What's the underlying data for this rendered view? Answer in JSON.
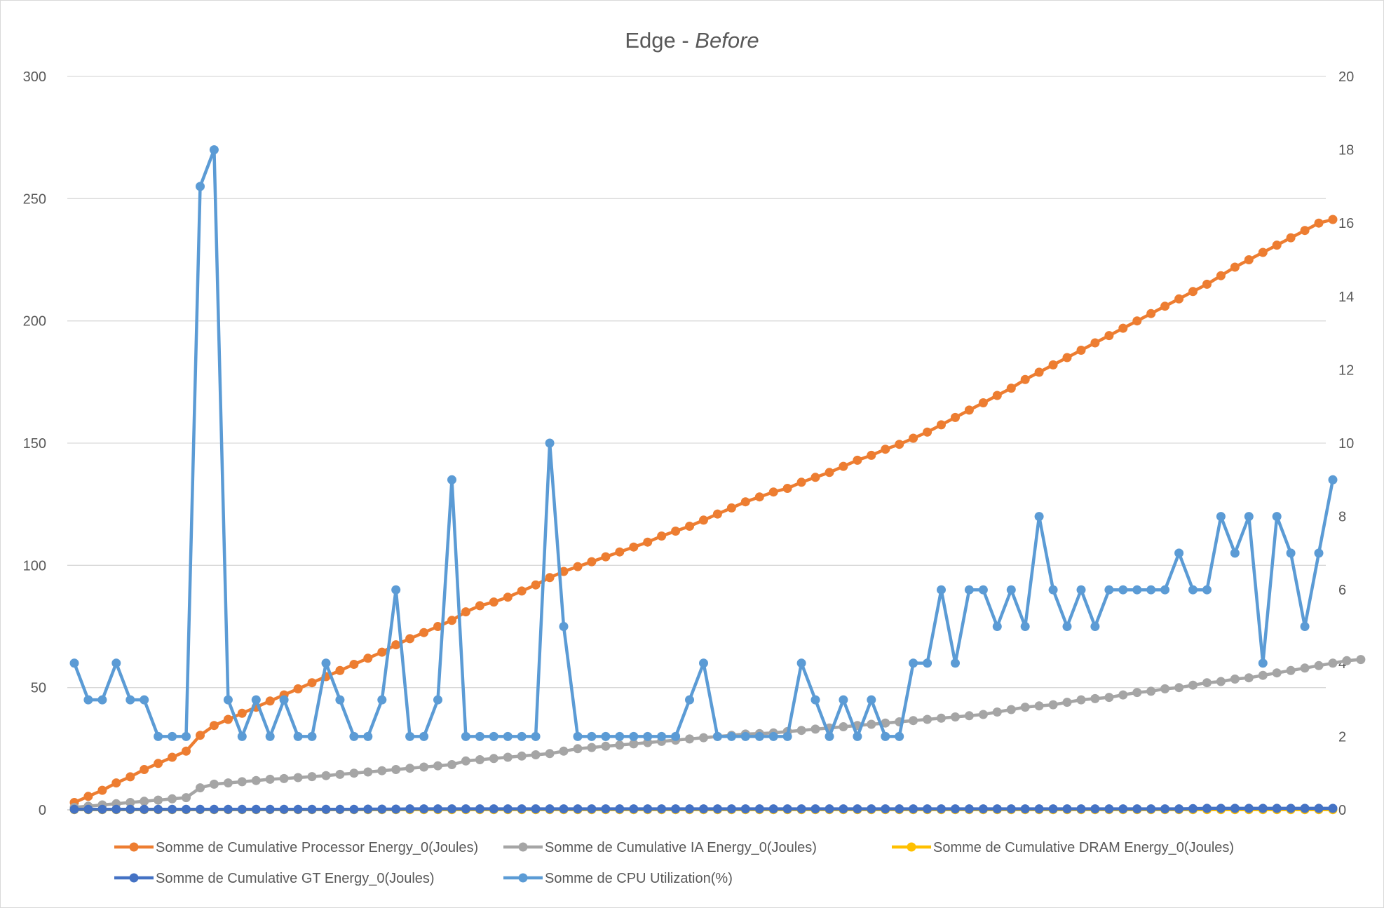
{
  "chart_data": {
    "type": "line",
    "title": "Edge - ",
    "title_italic": "Before",
    "x_count": 90,
    "y_left": {
      "min": 0,
      "max": 300,
      "ticks": [
        0,
        50,
        100,
        150,
        200,
        250,
        300
      ]
    },
    "y_right": {
      "min": 0,
      "max": 20,
      "ticks": [
        0,
        2,
        4,
        6,
        8,
        10,
        12,
        14,
        16,
        18,
        20
      ]
    },
    "grid": true,
    "legend_position": "bottom",
    "series": [
      {
        "name": "Somme de Cumulative Processor Energy_0(Joules)",
        "color": "#ED7D31",
        "axis": "left",
        "values": [
          3,
          5.5,
          8,
          11,
          13.5,
          16.5,
          19,
          21.5,
          24,
          30.5,
          34.5,
          37,
          39.5,
          42,
          44.5,
          47,
          49.5,
          52,
          54.5,
          57,
          59.5,
          62,
          64.5,
          67.5,
          70,
          72.5,
          75,
          77.5,
          81,
          83.5,
          85,
          87,
          89.5,
          92,
          95,
          97.5,
          99.5,
          101.5,
          103.5,
          105.5,
          107.5,
          109.5,
          112,
          114,
          116,
          118.5,
          121,
          123.5,
          126,
          128,
          130,
          131.5,
          134,
          136,
          138,
          140.5,
          143,
          145,
          147.5,
          149.5,
          152,
          154.5,
          157.5,
          160.5,
          163.5,
          166.5,
          169.5,
          172.5,
          176,
          179,
          182,
          185,
          188,
          191,
          194,
          197,
          200,
          203,
          206,
          209,
          212,
          215,
          218.5,
          222,
          225,
          228,
          231,
          234,
          237,
          240,
          241.5
        ]
      },
      {
        "name": "Somme de Cumulative IA Energy_0(Joules)",
        "color": "#A5A5A5",
        "axis": "left",
        "values": [
          1,
          1.5,
          2,
          2.5,
          3,
          3.5,
          4,
          4.5,
          5,
          9,
          10.5,
          11,
          11.5,
          12,
          12.5,
          12.8,
          13.2,
          13.6,
          14,
          14.5,
          15,
          15.5,
          16,
          16.5,
          17,
          17.5,
          18,
          18.5,
          20,
          20.5,
          21,
          21.5,
          22,
          22.5,
          23,
          24,
          25,
          25.5,
          26,
          26.5,
          27,
          27.5,
          28,
          28.5,
          29,
          29.5,
          30,
          30.5,
          31,
          31.2,
          31.5,
          32,
          32.5,
          33,
          33.5,
          34,
          34.5,
          35,
          35.5,
          36,
          36.5,
          37,
          37.5,
          38,
          38.5,
          39,
          40,
          41,
          42,
          42.5,
          43,
          44,
          45,
          45.5,
          46,
          47,
          48,
          48.5,
          49.5,
          50,
          51,
          52,
          52.5,
          53.5,
          54,
          55,
          56,
          57,
          58,
          59,
          60,
          61,
          61.5
        ]
      },
      {
        "name": "Somme de Cumulative DRAM Energy_0(Joules)",
        "color": "#FFC000",
        "axis": "left",
        "values": [
          0.1,
          0.1,
          0.1,
          0.1,
          0.1,
          0.1,
          0.1,
          0.1,
          0.1,
          0.1,
          0.1,
          0.1,
          0.1,
          0.1,
          0.1,
          0.1,
          0.1,
          0.1,
          0.1,
          0.1,
          0.1,
          0.1,
          0.1,
          0.1,
          0.1,
          0.1,
          0.1,
          0.1,
          0.1,
          0.1,
          0.1,
          0.1,
          0.1,
          0.1,
          0.1,
          0.1,
          0.1,
          0.1,
          0.1,
          0.1,
          0.1,
          0.1,
          0.1,
          0.1,
          0.1,
          0.1,
          0.1,
          0.1,
          0.1,
          0.1,
          0.1,
          0.1,
          0.1,
          0.1,
          0.1,
          0.1,
          0.1,
          0.1,
          0.1,
          0.1,
          0.1,
          0.1,
          0.1,
          0.1,
          0.1,
          0.1,
          0.1,
          0.1,
          0.1,
          0.1,
          0.1,
          0.1,
          0.1,
          0.1,
          0.1,
          0.1,
          0.1,
          0.1,
          0.1,
          0.1,
          0.1,
          0.1,
          0.1,
          0.1,
          0.1,
          0.1,
          0.1,
          0.1,
          0.1,
          0.1,
          0.1
        ]
      },
      {
        "name": "Somme de Cumulative GT Energy_0(Joules)",
        "color": "#4472C4",
        "axis": "left",
        "values": [
          0.2,
          0.2,
          0.2,
          0.2,
          0.2,
          0.2,
          0.2,
          0.2,
          0.2,
          0.2,
          0.2,
          0.2,
          0.2,
          0.2,
          0.2,
          0.2,
          0.2,
          0.2,
          0.2,
          0.2,
          0.2,
          0.3,
          0.3,
          0.3,
          0.4,
          0.4,
          0.4,
          0.4,
          0.4,
          0.4,
          0.4,
          0.4,
          0.4,
          0.4,
          0.4,
          0.4,
          0.4,
          0.4,
          0.4,
          0.4,
          0.4,
          0.4,
          0.4,
          0.4,
          0.4,
          0.4,
          0.4,
          0.4,
          0.4,
          0.4,
          0.4,
          0.4,
          0.4,
          0.4,
          0.4,
          0.4,
          0.4,
          0.4,
          0.4,
          0.4,
          0.4,
          0.4,
          0.4,
          0.4,
          0.4,
          0.4,
          0.4,
          0.4,
          0.4,
          0.4,
          0.4,
          0.4,
          0.4,
          0.4,
          0.4,
          0.4,
          0.4,
          0.4,
          0.4,
          0.4,
          0.5,
          0.6,
          0.6,
          0.6,
          0.6,
          0.6,
          0.6,
          0.6,
          0.6,
          0.6,
          0.6
        ]
      },
      {
        "name": "Somme de  CPU Utilization(%)",
        "color": "#5B9BD5",
        "axis": "right",
        "values": [
          4,
          3,
          3,
          4,
          3,
          3,
          2,
          2,
          2,
          17,
          18,
          3,
          2,
          3,
          2,
          3,
          2,
          2,
          4,
          3,
          2,
          2,
          3,
          6,
          2,
          2,
          3,
          9,
          2,
          2,
          2,
          2,
          2,
          2,
          10,
          5,
          2,
          2,
          2,
          2,
          2,
          2,
          2,
          2,
          3,
          4,
          2,
          2,
          2,
          2,
          2,
          2,
          4,
          3,
          2,
          3,
          2,
          3,
          2,
          2,
          4,
          4,
          6,
          4,
          6,
          6,
          5,
          6,
          5,
          8,
          6,
          5,
          6,
          5,
          6,
          6,
          6,
          6,
          6,
          7,
          6,
          6,
          8,
          7,
          8,
          4,
          8,
          7,
          5,
          7,
          9
        ]
      }
    ]
  }
}
